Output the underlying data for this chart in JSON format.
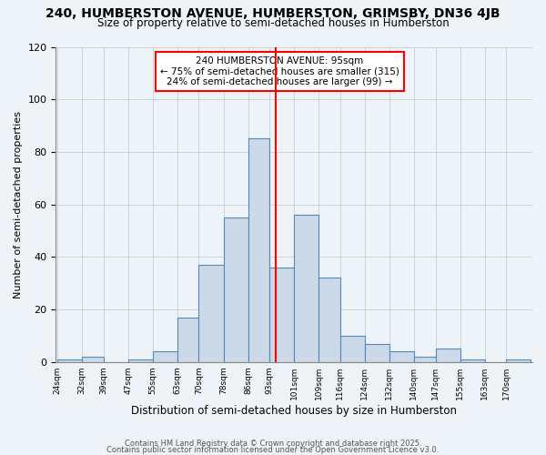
{
  "title": "240, HUMBERSTON AVENUE, HUMBERSTON, GRIMSBY, DN36 4JB",
  "subtitle": "Size of property relative to semi-detached houses in Humberston",
  "xlabel": "Distribution of semi-detached houses by size in Humberston",
  "ylabel": "Number of semi-detached properties",
  "property_size": 95,
  "pct_smaller": 75,
  "count_smaller": 315,
  "pct_larger": 24,
  "count_larger": 99,
  "bar_color": "#ccd9e8",
  "bar_edge_color": "#5588bb",
  "vline_color": "red",
  "background_color": "#eef3f8",
  "bins": [
    24,
    32,
    39,
    47,
    55,
    63,
    70,
    78,
    86,
    93,
    101,
    109,
    116,
    124,
    132,
    140,
    147,
    155,
    163,
    170,
    178
  ],
  "counts": [
    1,
    2,
    0,
    1,
    4,
    17,
    37,
    55,
    85,
    36,
    56,
    32,
    10,
    7,
    4,
    2,
    5,
    1,
    0,
    1
  ],
  "ylim": [
    0,
    120
  ],
  "yticks": [
    0,
    20,
    40,
    60,
    80,
    100,
    120
  ],
  "footer_line1": "Contains HM Land Registry data © Crown copyright and database right 2025.",
  "footer_line2": "Contains public sector information licensed under the Open Government Licence v3.0.",
  "title_fontsize": 10,
  "subtitle_fontsize": 8.5,
  "xlabel_fontsize": 8.5,
  "ylabel_fontsize": 8
}
